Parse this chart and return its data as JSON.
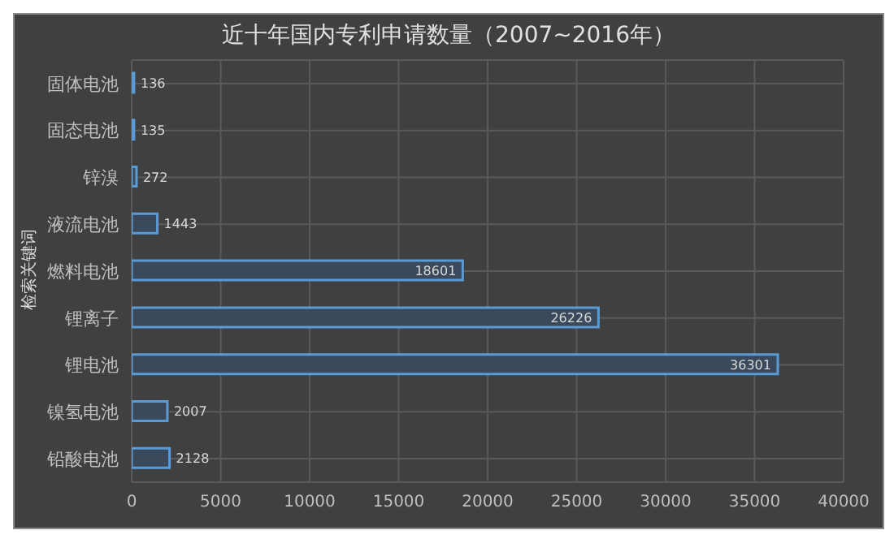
{
  "chart_data": {
    "type": "bar",
    "orientation": "horizontal",
    "title": "近十年国内专利申请数量（2007~2016年）",
    "ylabel": "检索关键词",
    "categories": [
      "固体电池",
      "固态电池",
      "锌溴",
      "液流电池",
      "燃料电池",
      "锂离子",
      "锂电池",
      "镍氢电池",
      "铅酸电池"
    ],
    "values": [
      136,
      135,
      272,
      1443,
      18601,
      26226,
      36301,
      2007,
      2128
    ],
    "color": "#5b9bd5",
    "xlim": [
      0,
      40000
    ],
    "xticks": [
      0,
      5000,
      10000,
      15000,
      20000,
      25000,
      30000,
      35000,
      40000
    ],
    "grid": true,
    "data_labels": true
  }
}
